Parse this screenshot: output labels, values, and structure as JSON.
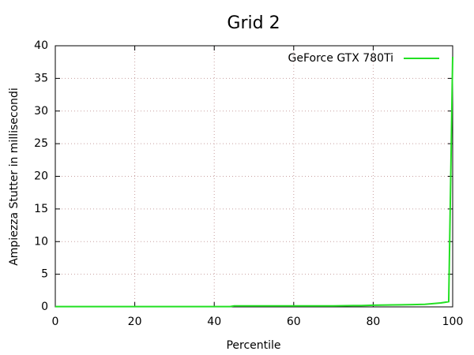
{
  "chart_data": {
    "type": "line",
    "title": "Grid 2",
    "x_label": "Percentile",
    "y_label": "Ampiezza Stutter in millisecondi",
    "xlim": [
      0,
      100
    ],
    "xticks": [
      0,
      20,
      40,
      60,
      80,
      100
    ],
    "ylim": [
      0,
      40
    ],
    "yticks": [
      0,
      5,
      10,
      15,
      20,
      25,
      30,
      35,
      40
    ],
    "grid": true,
    "legend": "top-right",
    "x": [
      0,
      10,
      20,
      30,
      40,
      44,
      45,
      50,
      60,
      70,
      75,
      77,
      80,
      85,
      90,
      93,
      95,
      97,
      98,
      99,
      100
    ],
    "series": [
      {
        "name": "GeForce GTX 780Ti",
        "color": "#22e022",
        "values": [
          0.05,
          0.05,
          0.05,
          0.05,
          0.05,
          0.05,
          0.15,
          0.15,
          0.15,
          0.15,
          0.2,
          0.2,
          0.25,
          0.3,
          0.35,
          0.4,
          0.5,
          0.6,
          0.7,
          0.8,
          38.3
        ]
      }
    ]
  }
}
